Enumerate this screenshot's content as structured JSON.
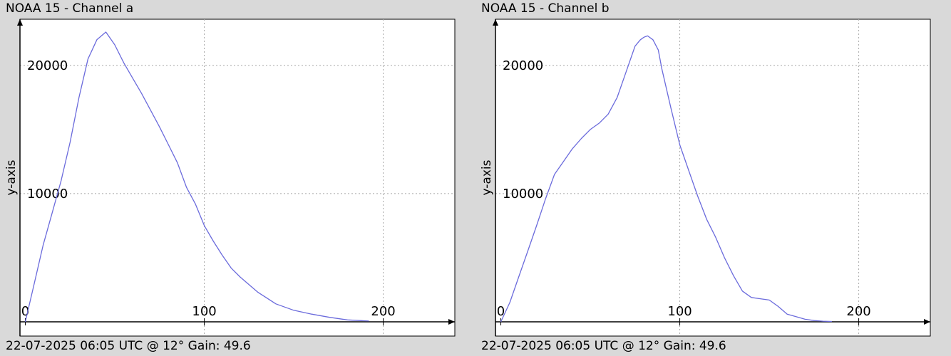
{
  "chart_data": [
    {
      "type": "line",
      "title": "NOAA 15 - Channel a",
      "footer": "22-07-2025 06:05 UTC @ 12° Gain: 49.6",
      "xlabel": "",
      "ylabel": "y-axis",
      "xlim": [
        -3,
        240
      ],
      "ylim": [
        0,
        23600
      ],
      "xticks": [
        0,
        100,
        200
      ],
      "yticks": [
        10000,
        20000
      ],
      "grid": true,
      "line_color": "#6b6bdc",
      "series": [
        {
          "x": [
            0,
            5,
            10,
            15,
            20,
            25,
            30,
            35,
            40,
            45,
            50,
            55,
            60,
            65,
            70,
            75,
            80,
            85,
            90,
            95,
            100,
            105,
            110,
            115,
            120,
            130,
            140,
            150,
            160,
            170,
            180,
            192
          ],
          "y": [
            0,
            3000,
            6000,
            8500,
            11000,
            14000,
            17500,
            20500,
            22000,
            22600,
            21600,
            20200,
            19000,
            17800,
            16500,
            15200,
            13800,
            12400,
            10500,
            9200,
            7500,
            6300,
            5200,
            4200,
            3500,
            2300,
            1400,
            900,
            600,
            350,
            150,
            60
          ]
        }
      ]
    },
    {
      "type": "line",
      "title": "NOAA 15 - Channel b",
      "footer": "22-07-2025 06:05 UTC @ 12° Gain: 49.6",
      "xlabel": "",
      "ylabel": "y-axis",
      "xlim": [
        -3,
        240
      ],
      "ylim": [
        0,
        23600
      ],
      "xticks": [
        0,
        100,
        200
      ],
      "yticks": [
        10000,
        20000
      ],
      "grid": true,
      "line_color": "#6b6bdc",
      "series": [
        {
          "x": [
            0,
            5,
            10,
            15,
            20,
            25,
            30,
            35,
            40,
            45,
            50,
            55,
            60,
            65,
            70,
            75,
            78,
            80,
            82,
            85,
            88,
            90,
            95,
            100,
            105,
            110,
            115,
            120,
            125,
            130,
            135,
            140,
            145,
            150,
            155,
            160,
            165,
            170,
            175,
            180,
            185
          ],
          "y": [
            0,
            1500,
            3500,
            5500,
            7500,
            9600,
            11500,
            12500,
            13500,
            14300,
            15000,
            15500,
            16200,
            17500,
            19500,
            21500,
            22000,
            22200,
            22300,
            22000,
            21200,
            19700,
            16700,
            13800,
            11800,
            9800,
            8000,
            6600,
            5000,
            3600,
            2400,
            1900,
            1800,
            1700,
            1200,
            600,
            400,
            200,
            100,
            50,
            30
          ]
        }
      ]
    }
  ]
}
